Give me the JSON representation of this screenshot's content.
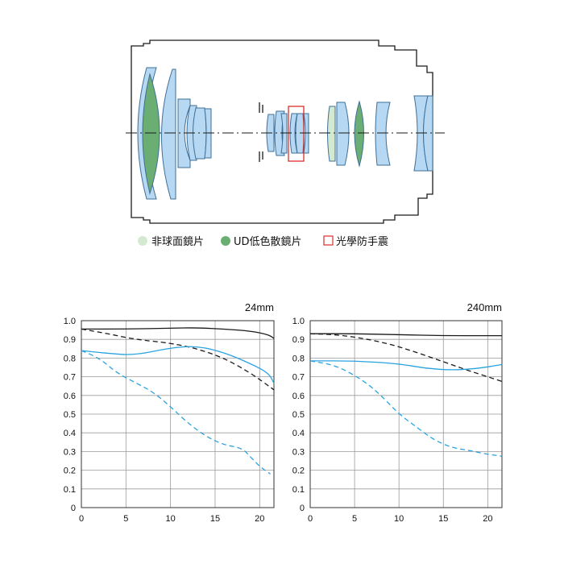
{
  "legend": [
    {
      "label": "非球面鏡片",
      "marker": "circle",
      "color": "#d3ead0"
    },
    {
      "label": "UD低色散鏡片",
      "marker": "circle",
      "color": "#6aae74"
    },
    {
      "label": "光學防手震",
      "marker": "square-outline",
      "color": "#d9302c"
    }
  ],
  "colors": {
    "lens_blue": "#b6d8f2",
    "lens_green": "#6aae74",
    "aspherical": "#d3ead0",
    "is_box": "#d9302c",
    "sagittal_black": "#1a1a1a",
    "sagittal_blue": "#2aa3e0"
  },
  "chart_data": [
    {
      "type": "line",
      "title": "24mm",
      "xlim": [
        0,
        21.6
      ],
      "ylim": [
        0,
        1.0
      ],
      "xticks": [
        0,
        5,
        10,
        15,
        20
      ],
      "yticks": [
        0,
        0.1,
        0.2,
        0.3,
        0.4,
        0.5,
        0.6,
        0.7,
        0.8,
        0.9,
        1.0
      ],
      "ytick_labels": [
        "0",
        "0.1",
        "0.2",
        "0.3",
        "0.4",
        "0.5",
        "0.6",
        "0.7",
        "0.8",
        "0.9",
        "1.0"
      ],
      "grid": true,
      "series": [
        {
          "color": "#1a1a1a",
          "dash": "solid",
          "points": [
            [
              0,
              0.955
            ],
            [
              5,
              0.955
            ],
            [
              10,
              0.96
            ],
            [
              13,
              0.962
            ],
            [
              16,
              0.955
            ],
            [
              19,
              0.945
            ],
            [
              21,
              0.925
            ],
            [
              21.6,
              0.905
            ]
          ]
        },
        {
          "color": "#1a1a1a",
          "dash": "dashed",
          "points": [
            [
              0,
              0.955
            ],
            [
              3,
              0.93
            ],
            [
              6,
              0.9
            ],
            [
              10,
              0.88
            ],
            [
              13,
              0.85
            ],
            [
              16,
              0.8
            ],
            [
              19,
              0.72
            ],
            [
              21.6,
              0.63
            ]
          ]
        },
        {
          "color": "#2aa3e0",
          "dash": "solid",
          "points": [
            [
              0,
              0.84
            ],
            [
              3,
              0.825
            ],
            [
              6,
              0.815
            ],
            [
              10,
              0.855
            ],
            [
              13,
              0.865
            ],
            [
              16,
              0.83
            ],
            [
              19,
              0.77
            ],
            [
              21,
              0.72
            ],
            [
              21.6,
              0.665
            ]
          ]
        },
        {
          "color": "#2aa3e0",
          "dash": "dashed",
          "points": [
            [
              0,
              0.84
            ],
            [
              2,
              0.8
            ],
            [
              4,
              0.72
            ],
            [
              6,
              0.67
            ],
            [
              8,
              0.62
            ],
            [
              10,
              0.54
            ],
            [
              12,
              0.45
            ],
            [
              14,
              0.38
            ],
            [
              16,
              0.335
            ],
            [
              18,
              0.32
            ],
            [
              19,
              0.27
            ],
            [
              20,
              0.22
            ],
            [
              21.2,
              0.18
            ]
          ]
        }
      ]
    },
    {
      "type": "line",
      "title": "240mm",
      "xlim": [
        0,
        21.6
      ],
      "ylim": [
        0,
        1.0
      ],
      "xticks": [
        0,
        5,
        10,
        15,
        20
      ],
      "yticks": [
        0,
        0.1,
        0.2,
        0.3,
        0.4,
        0.5,
        0.6,
        0.7,
        0.8,
        0.9,
        1.0
      ],
      "ytick_labels": [
        "0",
        "0.1",
        "0.2",
        "0.3",
        "0.4",
        "0.5",
        "0.6",
        "0.7",
        "0.8",
        "0.9",
        "1.0"
      ],
      "grid": true,
      "series": [
        {
          "color": "#1a1a1a",
          "dash": "solid",
          "points": [
            [
              0,
              0.93
            ],
            [
              5,
              0.93
            ],
            [
              10,
              0.925
            ],
            [
              15,
              0.92
            ],
            [
              20,
              0.92
            ],
            [
              21.6,
              0.92
            ]
          ]
        },
        {
          "color": "#1a1a1a",
          "dash": "dashed",
          "points": [
            [
              0,
              0.93
            ],
            [
              3,
              0.925
            ],
            [
              6,
              0.905
            ],
            [
              9,
              0.875
            ],
            [
              12,
              0.83
            ],
            [
              15,
              0.78
            ],
            [
              18,
              0.73
            ],
            [
              21.6,
              0.675
            ]
          ]
        },
        {
          "color": "#2aa3e0",
          "dash": "solid",
          "points": [
            [
              0,
              0.785
            ],
            [
              5,
              0.785
            ],
            [
              10,
              0.77
            ],
            [
              13,
              0.745
            ],
            [
              16,
              0.735
            ],
            [
              19,
              0.745
            ],
            [
              21.6,
              0.765
            ]
          ]
        },
        {
          "color": "#2aa3e0",
          "dash": "dashed",
          "points": [
            [
              0,
              0.785
            ],
            [
              3,
              0.76
            ],
            [
              6,
              0.68
            ],
            [
              8,
              0.6
            ],
            [
              10,
              0.5
            ],
            [
              12,
              0.43
            ],
            [
              14,
              0.36
            ],
            [
              16,
              0.32
            ],
            [
              18,
              0.305
            ],
            [
              20,
              0.285
            ],
            [
              21.6,
              0.275
            ]
          ]
        }
      ]
    }
  ]
}
